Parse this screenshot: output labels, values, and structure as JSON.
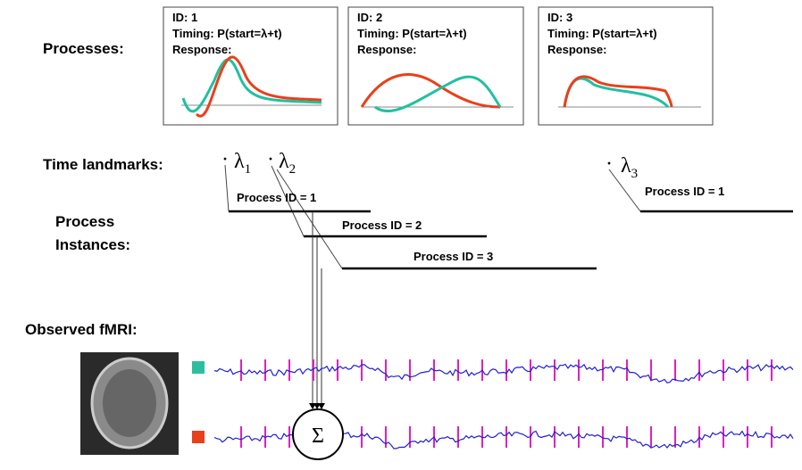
{
  "processes_label": "Processes:",
  "processes": [
    {
      "id": "ID: 1",
      "timing": "Timing: P(start=λ+t)",
      "response": "Response:"
    },
    {
      "id": "ID: 2",
      "timing": "Timing: P(start=λ+t)",
      "response": "Response:"
    },
    {
      "id": "ID: 3",
      "timing": "Timing: P(start=λ+t)",
      "response": "Response:"
    }
  ],
  "landmarks_label": "Time landmarks:",
  "landmarks": [
    {
      "symbol": "λ",
      "index": "1"
    },
    {
      "symbol": "λ",
      "index": "2"
    },
    {
      "symbol": "λ",
      "index": "3"
    }
  ],
  "instances_label": [
    "Process",
    "Instances:"
  ],
  "instances": [
    "Process ID = 1",
    "Process ID = 2",
    "Process ID = 3",
    "Process ID = 1"
  ],
  "observed_label": "Observed fMRI:",
  "sum_symbol": "Σ"
}
